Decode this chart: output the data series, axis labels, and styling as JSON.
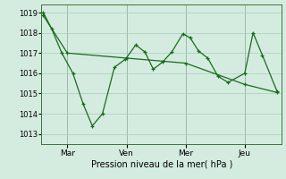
{
  "bg_color": "#d4ece0",
  "line_color": "#1a6b1a",
  "grid_color": "#a8ccb8",
  "xlabel": "Pression niveau de la mer( hPa )",
  "ylim": [
    1012.5,
    1019.4
  ],
  "yticks": [
    1013,
    1014,
    1015,
    1016,
    1017,
    1018,
    1019
  ],
  "xlim": [
    -0.01,
    1.29
  ],
  "vlines_x": [
    0.13,
    0.45,
    0.77,
    1.09
  ],
  "xtick_pos": [
    0.13,
    0.45,
    0.77,
    1.09
  ],
  "xtick_labels": [
    "Mar",
    "Ven",
    "Mer",
    "Jeu"
  ],
  "s1_x": [
    0.0,
    0.045,
    0.1,
    0.16,
    0.215,
    0.265,
    0.32,
    0.385,
    0.445,
    0.5,
    0.55,
    0.595,
    0.645,
    0.695,
    0.755,
    0.795,
    0.84,
    0.89,
    0.945,
    1.0,
    1.09,
    1.135,
    1.185,
    1.265
  ],
  "s1_y": [
    1019.0,
    1018.2,
    1017.0,
    1016.0,
    1014.5,
    1013.4,
    1014.0,
    1016.3,
    1016.7,
    1017.4,
    1017.05,
    1016.2,
    1016.55,
    1017.05,
    1017.95,
    1017.75,
    1017.1,
    1016.75,
    1015.85,
    1015.55,
    1016.0,
    1018.0,
    1016.9,
    1015.1
  ],
  "s2_x": [
    0.0,
    0.13,
    0.45,
    0.77,
    1.09,
    1.265
  ],
  "s2_y": [
    1018.85,
    1017.0,
    1016.75,
    1016.5,
    1015.45,
    1015.05
  ]
}
